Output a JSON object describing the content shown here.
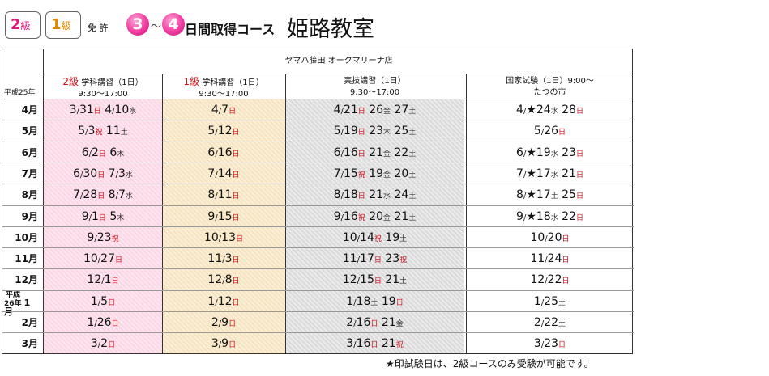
{
  "header": {
    "badge_2": "2",
    "badge_2_unit": "級",
    "badge_1": "1",
    "badge_1_unit": "級",
    "menkyo": "免 許",
    "num_from": "3",
    "tilde": "～",
    "num_to": "4",
    "course": "日間取得コース",
    "school": "姫路教室"
  },
  "table": {
    "shop": "ヤマハ藤田  オークマリーナ店",
    "year_label": "平成25年",
    "columns": [
      {
        "grade": "2級",
        "title": " 学科講習（1日）",
        "time": "9:30～17:00"
      },
      {
        "grade": "1級",
        "title": " 学科講習（1日）",
        "time": "9:30～17:00"
      },
      {
        "grade": "",
        "title": "実技講習（1日）",
        "time": "9:30～17:00"
      },
      {
        "grade": "",
        "title": "国家試験（1日）9:00～",
        "time": "たつの市"
      }
    ],
    "rows": [
      {
        "month": "4月",
        "c2": "3/31日 4/10水",
        "c1": "4/7日",
        "cj": "4/21日 26金 27土",
        "ck": "4/★24水 28日"
      },
      {
        "month": "5月",
        "c2": "5/3祝 11土",
        "c1": "5/12日",
        "cj": "5/19日 23木 25土",
        "ck": "5/26日"
      },
      {
        "month": "6月",
        "c2": "6/2日 6木",
        "c1": "6/16日",
        "cj": "6/16日 21金 22土",
        "ck": "6/★19水 23日"
      },
      {
        "month": "7月",
        "c2": "6/30日 7/3水",
        "c1": "7/14日",
        "cj": "7/15祝 19金 20土",
        "ck": "7/★17水 21日"
      },
      {
        "month": "8月",
        "c2": "7/28日 8/7水",
        "c1": "8/11日",
        "cj": "8/18日 21水 24土",
        "ck": "8/★17土 25日"
      },
      {
        "month": "9月",
        "c2": "9/1日 5木",
        "c1": "9/15日",
        "cj": "9/16祝 20金 21土",
        "ck": "9/★18水 22日"
      },
      {
        "month": "10月",
        "c2": "9/23祝",
        "c1": "10/13日",
        "cj": "10/14祝 19土",
        "ck": "10/20日"
      },
      {
        "month": "11月",
        "c2": "10/27日",
        "c1": "11/3日",
        "cj": "11/17日 23祝",
        "ck": "11/24日"
      },
      {
        "month": "12月",
        "c2": "12/1日",
        "c1": "12/8日",
        "cj": "12/15日 21土",
        "ck": "12/22日"
      },
      {
        "month_pre": "平成",
        "month_pre2": "26年",
        "month": "1月",
        "c2": "1/5日",
        "c1": "1/12日",
        "cj": "1/18土 19日",
        "ck": "1/25土"
      },
      {
        "month": "2月",
        "c2": "1/26日",
        "c1": "2/9日",
        "cj": "2/16日 21金",
        "ck": "2/22土"
      },
      {
        "month": "3月",
        "c2": "3/2日",
        "c1": "3/9日",
        "cj": "3/16日 21祝",
        "ck": "3/23日"
      }
    ]
  },
  "footnote": "★印試験日は、2級コースのみ受験が可能です。",
  "colors": {
    "accent_pink": "#e0187a",
    "accent_orange": "#e08a00",
    "holiday_red": "#d0101a"
  }
}
